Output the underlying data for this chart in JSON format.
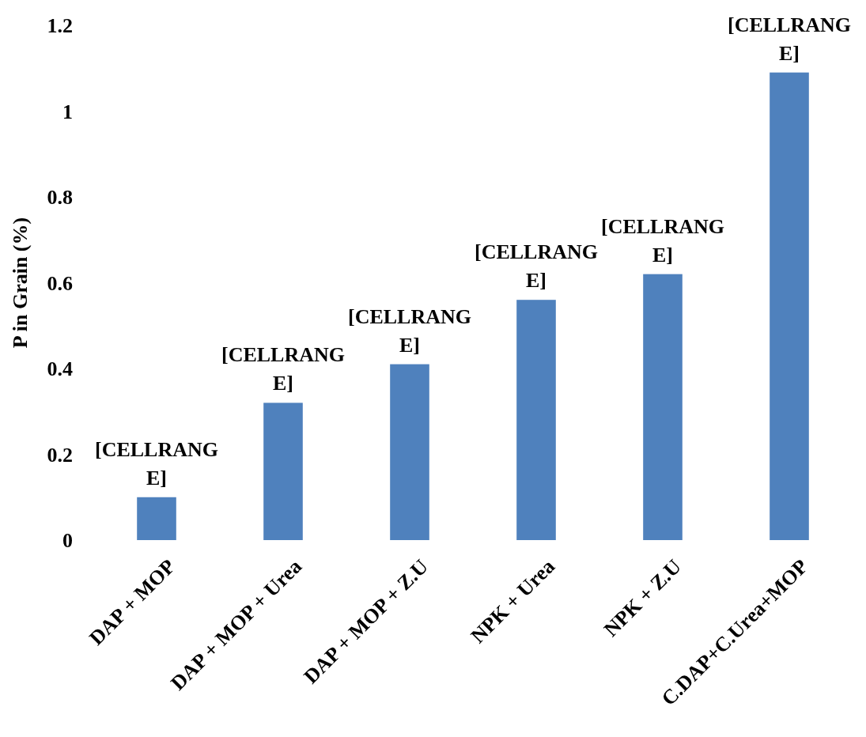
{
  "chart_data": {
    "type": "bar",
    "ylabel": "P in Grain (%)",
    "categories": [
      "DAP + MOP",
      "DAP + MOP + Urea",
      "DAP + MOP + Z.U",
      "NPK + Urea",
      "NPK + Z.U",
      "C.DAP+C.Urea+MOP"
    ],
    "values": [
      0.1,
      0.32,
      0.41,
      0.56,
      0.62,
      1.09
    ],
    "value_labels": [
      "[CELLRANGE]",
      "[CELLRANGE]",
      "[CELLRANGE]",
      "[CELLRANGE]",
      "[CELLRANGE]",
      "[CELLRANGE]"
    ],
    "color": "#4f81bd",
    "ylim": [
      0,
      1.2
    ],
    "yticks": [
      0,
      0.2,
      0.4,
      0.6,
      0.8,
      1,
      1.2
    ],
    "grid": false
  }
}
